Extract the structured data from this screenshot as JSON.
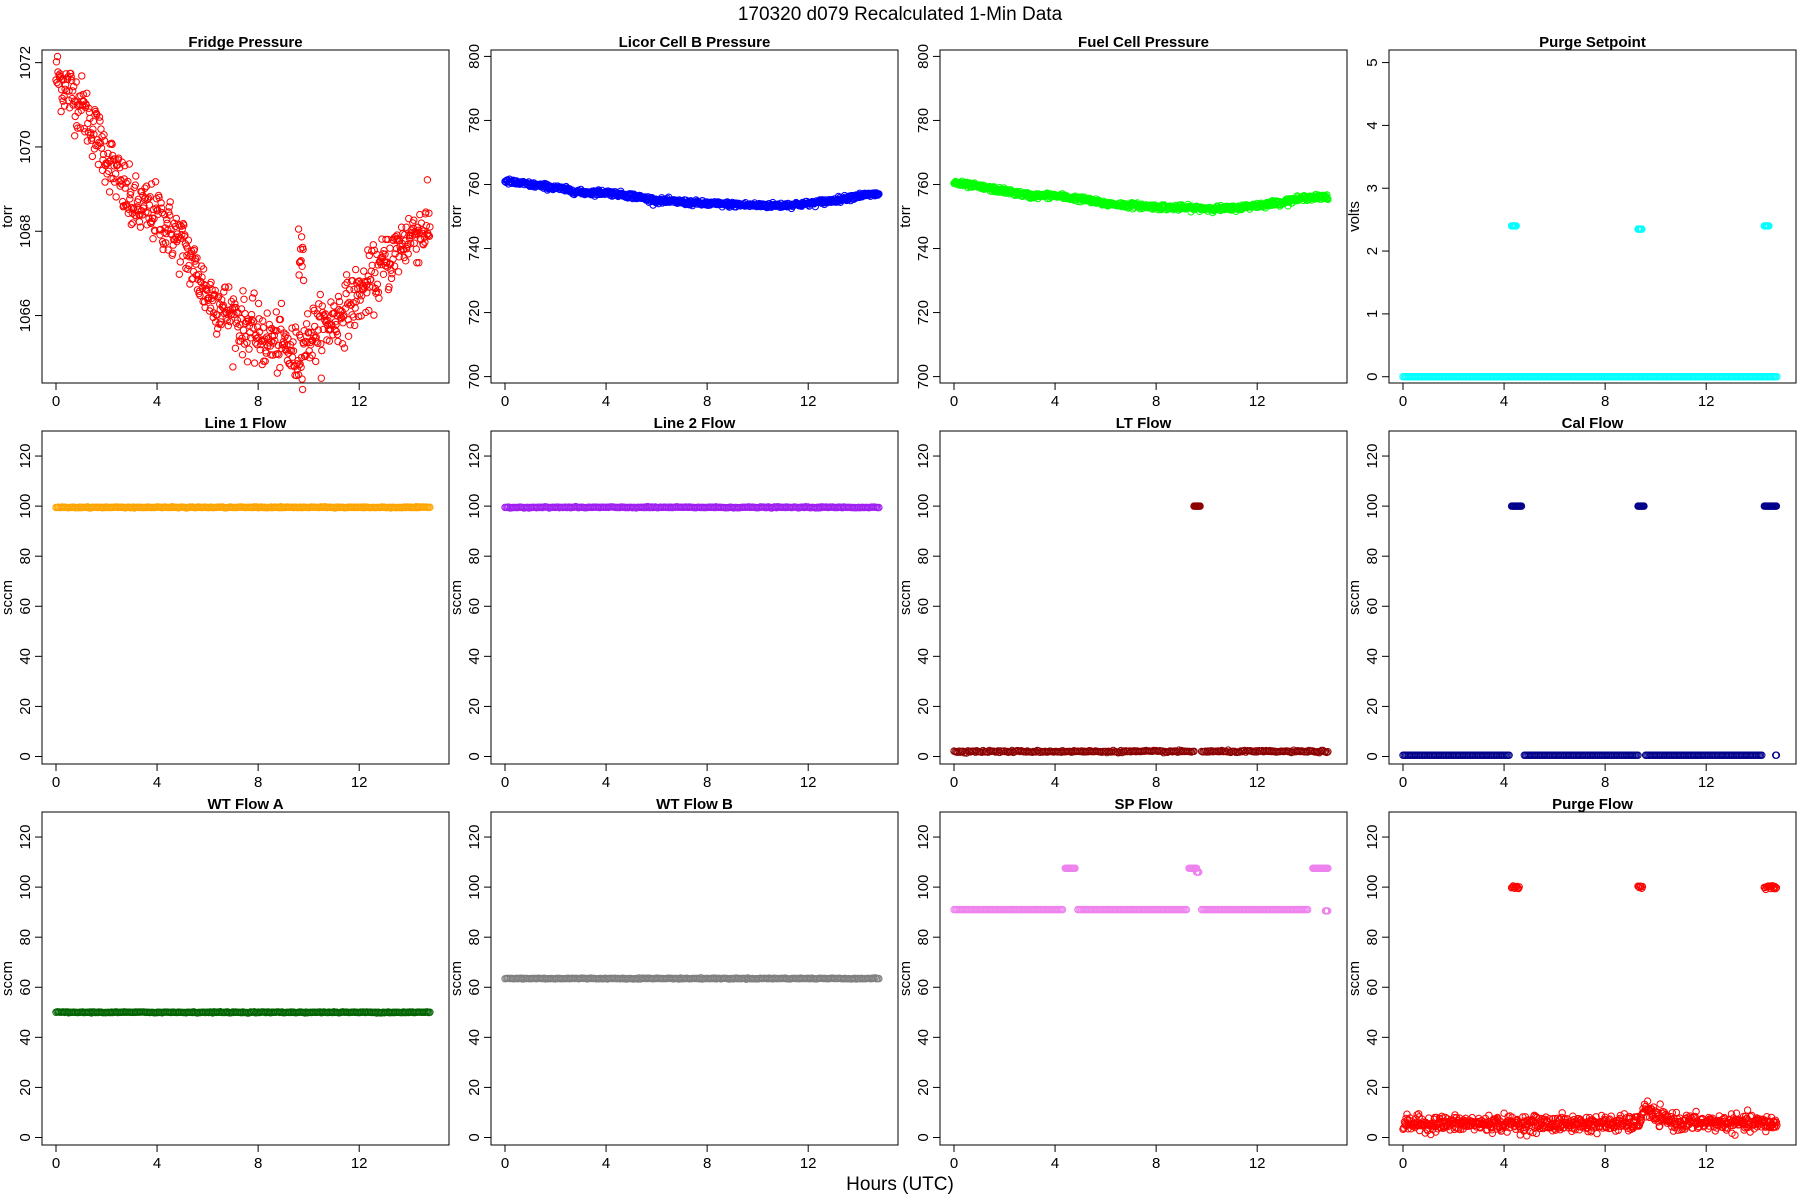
{
  "figure": {
    "title": "170320   d079   Recalculated 1-Min Data",
    "xlabel": "Hours (UTC)"
  },
  "chart_data": [
    {
      "type": "scatter",
      "title": "Fridge Pressure",
      "ylabel": "torr",
      "color": "#ff0000",
      "marker": "open-circle",
      "xlim": [
        0,
        15
      ],
      "ylim": [
        1064.4,
        1072.3
      ],
      "xticks": [
        0,
        4,
        8,
        12
      ],
      "yticks": [
        1066,
        1068,
        1070,
        1072
      ],
      "trend": [
        [
          0,
          1071.7
        ],
        [
          1,
          1071.0
        ],
        [
          2,
          1069.8
        ],
        [
          3,
          1068.6
        ],
        [
          4,
          1068.4
        ],
        [
          5,
          1067.7
        ],
        [
          6,
          1066.5
        ],
        [
          7,
          1066.0
        ],
        [
          8,
          1065.5
        ],
        [
          9,
          1065.3
        ],
        [
          9.5,
          1065.0
        ],
        [
          10,
          1065.5
        ],
        [
          11,
          1065.9
        ],
        [
          12,
          1066.5
        ],
        [
          13,
          1067.2
        ],
        [
          14,
          1067.9
        ],
        [
          14.8,
          1068.1
        ]
      ],
      "segments": [
        {
          "x": [
            9.6,
            9.8
          ],
          "y": 1067.5
        }
      ],
      "noise": 0.35
    },
    {
      "type": "scatter",
      "title": "Licor Cell B Pressure",
      "ylabel": "torr",
      "color": "#0000ff",
      "marker": "open-circle",
      "xlim": [
        0,
        15
      ],
      "ylim": [
        698,
        802
      ],
      "xticks": [
        0,
        4,
        8,
        12
      ],
      "yticks": [
        700,
        720,
        740,
        760,
        780,
        800
      ],
      "trend": [
        [
          0,
          761
        ],
        [
          2,
          759
        ],
        [
          3,
          757.5
        ],
        [
          4,
          757.5
        ],
        [
          5,
          756.5
        ],
        [
          6,
          755
        ],
        [
          8,
          754
        ],
        [
          10,
          753.5
        ],
        [
          11,
          753.5
        ],
        [
          12,
          754
        ],
        [
          13,
          755
        ],
        [
          14,
          756.5
        ],
        [
          14.8,
          757
        ]
      ],
      "noise": 0.4
    },
    {
      "type": "scatter",
      "title": "Fuel Cell Pressure",
      "ylabel": "torr",
      "color": "#00ff00",
      "marker": "open-circle",
      "xlim": [
        0,
        15
      ],
      "ylim": [
        698,
        802
      ],
      "xticks": [
        0,
        4,
        8,
        12
      ],
      "yticks": [
        700,
        720,
        740,
        760,
        780,
        800
      ],
      "trend": [
        [
          0,
          760.5
        ],
        [
          2,
          758
        ],
        [
          3,
          756.5
        ],
        [
          4,
          756.5
        ],
        [
          5,
          755.5
        ],
        [
          6,
          754
        ],
        [
          8,
          753
        ],
        [
          10,
          752.5
        ],
        [
          11,
          752.5
        ],
        [
          12,
          753.5
        ],
        [
          13,
          754.5
        ],
        [
          14,
          756
        ],
        [
          14.8,
          756
        ]
      ],
      "noise": 0.4
    },
    {
      "type": "scatter",
      "title": "Purge Setpoint",
      "ylabel": "volts",
      "color": "#00ffff",
      "marker": "open-circle",
      "xlim": [
        0,
        15
      ],
      "ylim": [
        -0.1,
        5.2
      ],
      "xticks": [
        0,
        4,
        8,
        12
      ],
      "yticks": [
        0,
        1,
        2,
        3,
        4,
        5
      ],
      "trend": [
        [
          0,
          0
        ],
        [
          14.8,
          0
        ]
      ],
      "clusters": [
        {
          "x": [
            4.3,
            4.5
          ],
          "y": 2.4
        },
        {
          "x": [
            9.3,
            9.45
          ],
          "y": 2.35
        },
        {
          "x": [
            14.3,
            14.5
          ],
          "y": 2.4
        }
      ],
      "noise": 0
    },
    {
      "type": "scatter",
      "title": "Line 1 Flow",
      "ylabel": "sccm",
      "color": "#ffa500",
      "marker": "open-circle",
      "xlim": [
        0,
        15
      ],
      "ylim": [
        -3,
        130
      ],
      "xticks": [
        0,
        4,
        8,
        12
      ],
      "yticks": [
        0,
        20,
        40,
        60,
        80,
        100,
        120
      ],
      "trend": [
        [
          0,
          99.5
        ],
        [
          14.8,
          99.5
        ]
      ],
      "noise": 0.1
    },
    {
      "type": "scatter",
      "title": "Line 2 Flow",
      "ylabel": "sccm",
      "color": "#a020f0",
      "marker": "open-circle",
      "xlim": [
        0,
        15
      ],
      "ylim": [
        -3,
        130
      ],
      "xticks": [
        0,
        4,
        8,
        12
      ],
      "yticks": [
        0,
        20,
        40,
        60,
        80,
        100,
        120
      ],
      "trend": [
        [
          0,
          99.5
        ],
        [
          14.8,
          99.5
        ]
      ],
      "noise": 0.1
    },
    {
      "type": "scatter",
      "title": "LT Flow",
      "ylabel": "sccm",
      "color": "#8b0000",
      "marker": "open-circle",
      "xlim": [
        0,
        15
      ],
      "ylim": [
        -3,
        130
      ],
      "xticks": [
        0,
        4,
        8,
        12
      ],
      "yticks": [
        0,
        20,
        40,
        60,
        80,
        100,
        120
      ],
      "trend": [
        [
          0,
          2
        ],
        [
          9.5,
          2
        ]
      ],
      "trend2": [
        [
          9.8,
          2
        ],
        [
          14.8,
          2
        ]
      ],
      "clusters": [
        {
          "x": [
            9.5,
            9.75
          ],
          "y": 100
        }
      ],
      "noise": 0.2
    },
    {
      "type": "scatter",
      "title": "Cal Flow",
      "ylabel": "sccm",
      "color": "#00008b",
      "marker": "open-circle",
      "xlim": [
        0,
        15
      ],
      "ylim": [
        -3,
        130
      ],
      "xticks": [
        0,
        4,
        8,
        12
      ],
      "yticks": [
        0,
        20,
        40,
        60,
        80,
        100,
        120
      ],
      "trend": [
        [
          0,
          0.5
        ],
        [
          4.2,
          0.5
        ]
      ],
      "trend2": [
        [
          4.8,
          0.5
        ],
        [
          9.3,
          0.5
        ]
      ],
      "trend3": [
        [
          9.6,
          0.5
        ],
        [
          14.2,
          0.5
        ]
      ],
      "clusters": [
        {
          "x": [
            4.3,
            4.7
          ],
          "y": 100
        },
        {
          "x": [
            9.3,
            9.55
          ],
          "y": 100
        },
        {
          "x": [
            14.3,
            14.8
          ],
          "y": 100
        },
        {
          "x": [
            14.75,
            14.8
          ],
          "y": 0.5
        }
      ],
      "noise": 0
    },
    {
      "type": "scatter",
      "title": "WT Flow A",
      "ylabel": "sccm",
      "color": "#006400",
      "marker": "open-circle",
      "xlim": [
        0,
        15
      ],
      "ylim": [
        -3,
        130
      ],
      "xticks": [
        0,
        4,
        8,
        12
      ],
      "yticks": [
        0,
        20,
        40,
        60,
        80,
        100,
        120
      ],
      "trend": [
        [
          0,
          50
        ],
        [
          14.8,
          50
        ]
      ],
      "noise": 0.1
    },
    {
      "type": "scatter",
      "title": "WT Flow B",
      "ylabel": "sccm",
      "color": "#808080",
      "marker": "open-circle",
      "xlim": [
        0,
        15
      ],
      "ylim": [
        -3,
        130
      ],
      "xticks": [
        0,
        4,
        8,
        12
      ],
      "yticks": [
        0,
        20,
        40,
        60,
        80,
        100,
        120
      ],
      "trend": [
        [
          0,
          63.5
        ],
        [
          14.8,
          63.5
        ]
      ],
      "noise": 0.1
    },
    {
      "type": "scatter",
      "title": "SP Flow",
      "ylabel": "sccm",
      "color": "#ee82ee",
      "marker": "open-circle",
      "xlim": [
        0,
        15
      ],
      "ylim": [
        -3,
        130
      ],
      "xticks": [
        0,
        4,
        8,
        12
      ],
      "yticks": [
        0,
        20,
        40,
        60,
        80,
        100,
        120
      ],
      "trend": [
        [
          0,
          91
        ],
        [
          4.3,
          91
        ]
      ],
      "trend2": [
        [
          4.9,
          91
        ],
        [
          9.2,
          91
        ]
      ],
      "trend3": [
        [
          9.8,
          91
        ],
        [
          14.0,
          91
        ]
      ],
      "clusters": [
        {
          "x": [
            4.4,
            4.8
          ],
          "y": 107.5
        },
        {
          "x": [
            9.3,
            9.6
          ],
          "y": 107.5
        },
        {
          "x": [
            9.6,
            9.7
          ],
          "y": 106
        },
        {
          "x": [
            14.2,
            14.8
          ],
          "y": 107.5
        },
        {
          "x": [
            14.7,
            14.8
          ],
          "y": 90.5
        }
      ],
      "noise": 0
    },
    {
      "type": "scatter",
      "title": "Purge Flow",
      "ylabel": "sccm",
      "color": "#ff0000",
      "marker": "open-circle",
      "xlim": [
        0,
        15
      ],
      "ylim": [
        -3,
        130
      ],
      "xticks": [
        0,
        4,
        8,
        12
      ],
      "yticks": [
        0,
        20,
        40,
        60,
        80,
        100,
        120
      ],
      "trend": [
        [
          0,
          5.5
        ],
        [
          9.3,
          5.5
        ],
        [
          9.6,
          12
        ],
        [
          10,
          8
        ],
        [
          11,
          6
        ],
        [
          14.8,
          5.5
        ]
      ],
      "clusters": [
        {
          "x": [
            4.3,
            4.6
          ],
          "y": 100
        },
        {
          "x": [
            9.3,
            9.5
          ],
          "y": 100
        },
        {
          "x": [
            14.3,
            14.8
          ],
          "y": 100
        }
      ],
      "noise": 1.6
    }
  ]
}
